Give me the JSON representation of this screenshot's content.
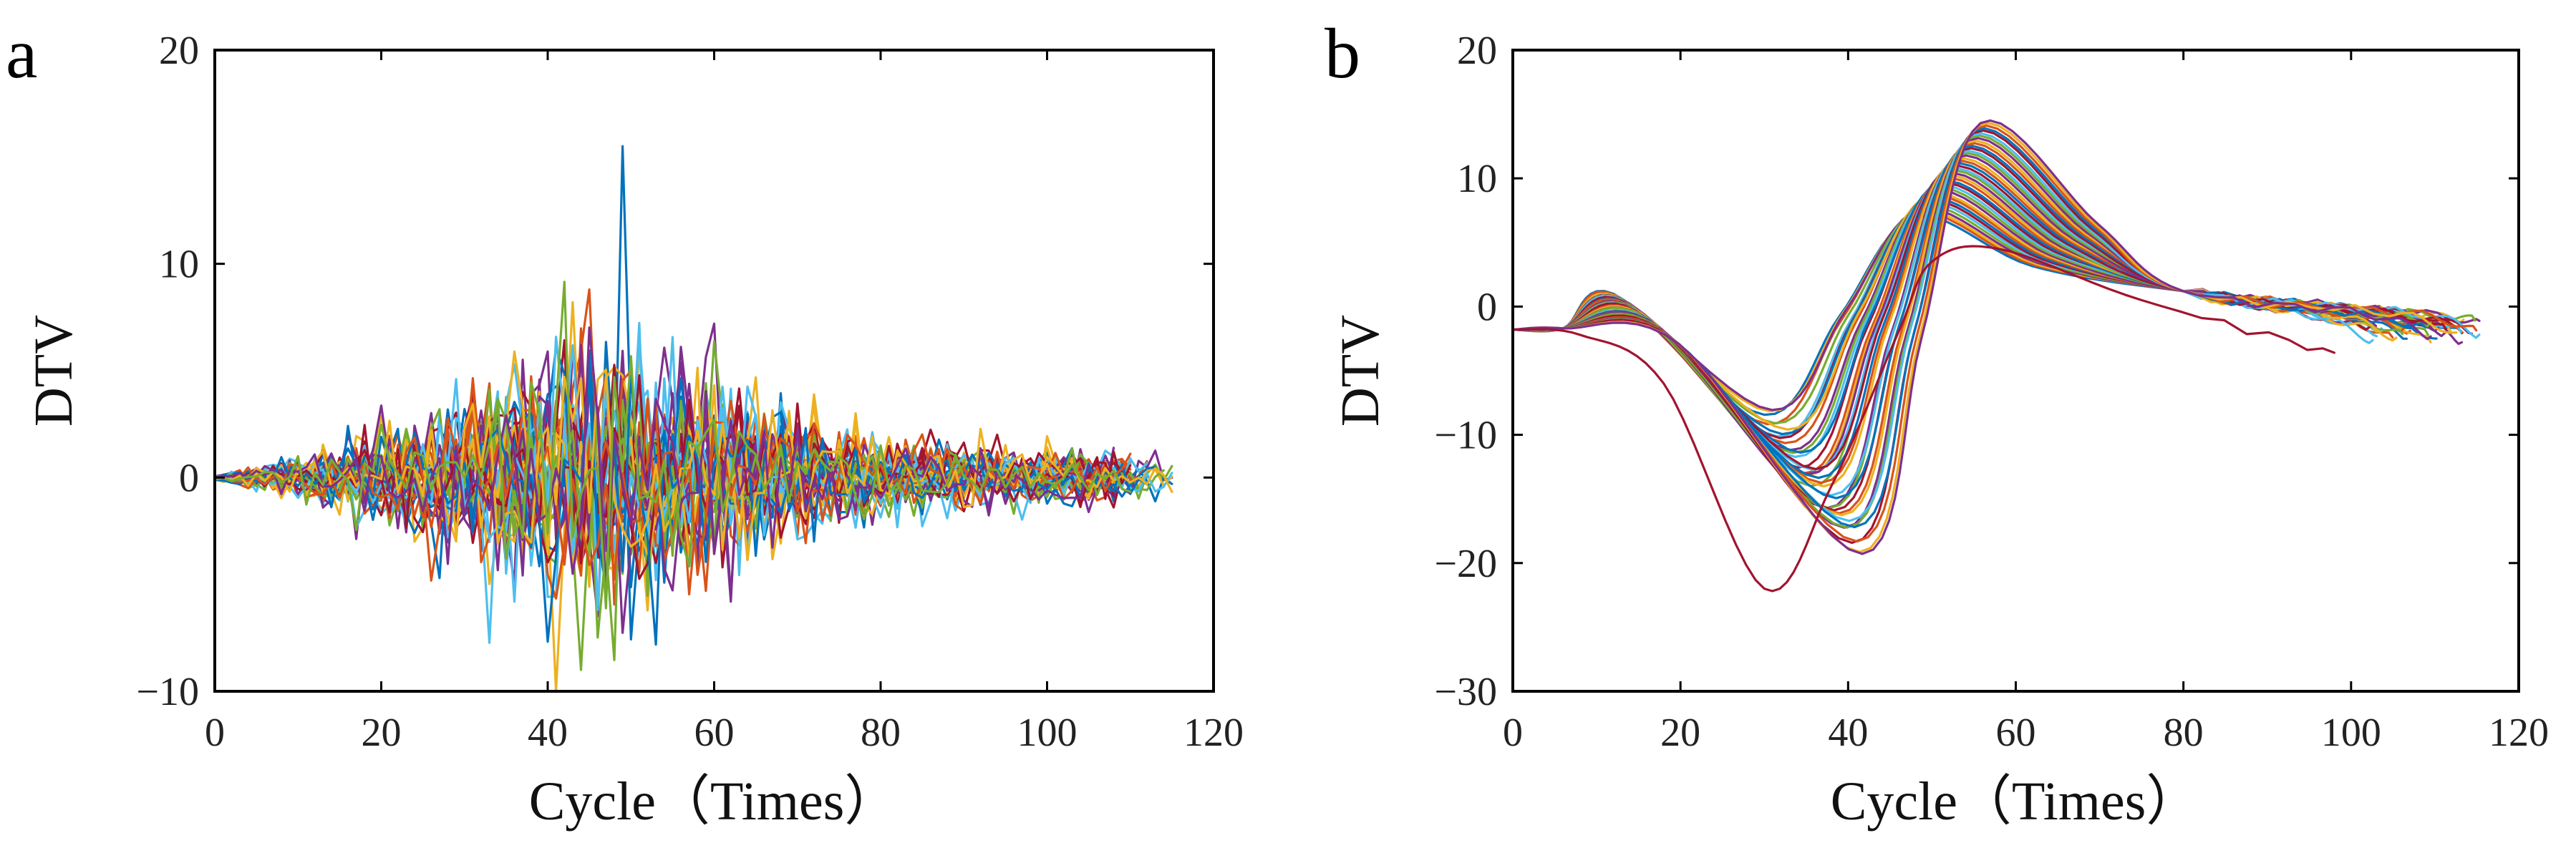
{
  "chart_data": [
    {
      "type": "line",
      "panel_label": "a",
      "xlabel": "Cycle（Times）",
      "ylabel": "DTV",
      "xlim": [
        0,
        120
      ],
      "ylim": [
        -10,
        20
      ],
      "xticks": [
        0,
        20,
        40,
        60,
        80,
        100,
        120
      ],
      "yticks": [
        -10,
        0,
        10,
        20
      ],
      "xtick_labels": [
        "0",
        "20",
        "40",
        "60",
        "80",
        "100",
        "120"
      ],
      "ytick_labels": [
        "−10",
        "0",
        "10",
        "20"
      ],
      "grid": false,
      "legend": "none",
      "notes_visible": {
        "noise_envelope": [
          [
            0,
            0.1
          ],
          [
            10,
            0.8
          ],
          [
            20,
            1.8
          ],
          [
            30,
            3.2
          ],
          [
            40,
            5.0
          ],
          [
            50,
            5.2
          ],
          [
            60,
            3.6
          ],
          [
            70,
            2.4
          ],
          [
            80,
            1.6
          ],
          [
            90,
            1.2
          ],
          [
            100,
            1.0
          ],
          [
            115,
            0.8
          ]
        ],
        "spikes": [
          {
            "x": 49,
            "y": 15.5
          },
          {
            "x": 45,
            "y": 8.8
          },
          {
            "x": 43,
            "y": 8.2
          },
          {
            "x": 60,
            "y": 7.2
          },
          {
            "x": 44,
            "y": -9.0
          },
          {
            "x": 36,
            "y": -5.8
          },
          {
            "x": 61,
            "y": -4.2
          },
          {
            "x": 27,
            "y": -4.7
          }
        ],
        "series_count": 40,
        "x_end_range": [
          105,
          116
        ]
      }
    },
    {
      "type": "line",
      "panel_label": "b",
      "xlabel": "Cycle（Times）",
      "ylabel": "DTV",
      "xlim": [
        0,
        120
      ],
      "ylim": [
        -30,
        20
      ],
      "xticks": [
        0,
        20,
        40,
        60,
        80,
        100,
        120
      ],
      "yticks": [
        -30,
        -20,
        -10,
        0,
        10,
        20
      ],
      "xtick_labels": [
        "0",
        "20",
        "40",
        "60",
        "80",
        "100",
        "120"
      ],
      "ytick_labels": [
        "−30",
        "−20",
        "−10",
        "0",
        "10",
        "20"
      ],
      "grid": false,
      "legend": "none",
      "notes_visible": {
        "series_count": 40,
        "start_value": -1.8,
        "early_hump": {
          "x_range": [
            12,
            20
          ],
          "y_range": [
            -3,
            1
          ]
        },
        "trough": {
          "x_range": [
            28,
            42
          ],
          "y_range": [
            -22,
            -7
          ]
        },
        "peak": {
          "x_range": [
            48,
            56
          ],
          "y_range": [
            4,
            14.5
          ]
        },
        "tail_end": {
          "x_range": [
            98,
            116
          ],
          "y_range": [
            -3.5,
            0
          ]
        },
        "outlier_series": {
          "trough_x": 30,
          "trough_y": -22,
          "end_x": 98,
          "end_y": -3.6
        }
      }
    }
  ],
  "palette": [
    "#0072BD",
    "#D95319",
    "#EDB120",
    "#7E2F8E",
    "#77AC30",
    "#4DBEEE",
    "#A2142F"
  ]
}
